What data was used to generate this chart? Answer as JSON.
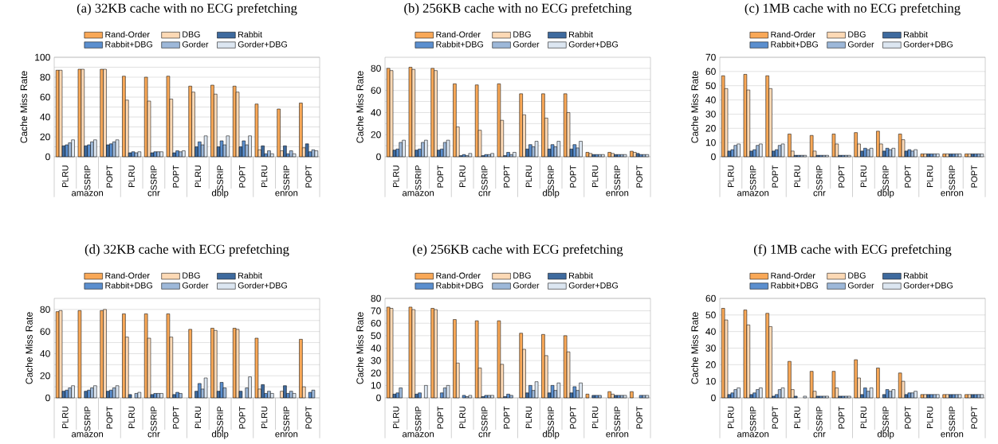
{
  "chart_data": [
    {
      "type": "bar",
      "title": "(a) 32KB cache with no ECG prefetching",
      "ylabel": "Cache Miss Rate",
      "categories": [
        "PLRU",
        "SSRIP",
        "POPT",
        "PLRU",
        "SSRIP",
        "POPT",
        "PLRU",
        "SSRIP",
        "POPT",
        "PLRU",
        "SSRIP",
        "POPT"
      ],
      "annotations": [
        "amazon",
        "cnr",
        "dblp",
        "enron"
      ],
      "ylim": [
        0,
        100
      ],
      "yticks": [
        0,
        {
          "value": 10,
          "label": null
        },
        20,
        {
          "value": 30,
          "label": null
        },
        40,
        {
          "value": 50,
          "label": null
        },
        60,
        {
          "value": 70,
          "label": null
        },
        80,
        {
          "value": 90,
          "label": null
        },
        100
      ],
      "grid": "y",
      "legend": "top",
      "series": [
        {
          "name": "Rand-Order",
          "color": "#f9a857",
          "values": [
            87,
            88,
            88,
            81,
            80,
            81,
            71,
            72,
            71,
            53,
            48,
            54
          ]
        },
        {
          "name": "DBG",
          "color": "#fdd9b5",
          "values": [
            87,
            88,
            88,
            57,
            56,
            58,
            65,
            63,
            65,
            7,
            6,
            9
          ]
        },
        {
          "name": "Rabbit",
          "color": "#3e6a9e",
          "values": [
            11,
            11,
            12,
            4,
            4,
            4,
            10,
            10,
            10,
            11,
            11,
            13
          ]
        },
        {
          "name": "Rabbit+DBG",
          "color": "#5b8fcf",
          "values": [
            12,
            12,
            13,
            5,
            5,
            6,
            15,
            16,
            16,
            3,
            3,
            5
          ]
        },
        {
          "name": "Gorder",
          "color": "#9db8d9",
          "values": [
            14,
            15,
            15,
            4,
            5,
            5,
            12,
            12,
            12,
            6,
            6,
            7
          ]
        },
        {
          "name": "Gorder+DBG",
          "color": "#dce6f1",
          "values": [
            17,
            17,
            17,
            5,
            5,
            6,
            21,
            21,
            21,
            3,
            3,
            6
          ]
        }
      ]
    },
    {
      "type": "bar",
      "title": "(b) 256KB cache with no ECG prefetching",
      "ylabel": "Cache Miss Rate",
      "categories": [
        "PLRU",
        "SSRIP",
        "POPT",
        "PLRU",
        "SSRIP",
        "POPT",
        "PLRU",
        "SSRIP",
        "POPT",
        "PLRU",
        "SSRIP",
        "POPT"
      ],
      "annotations": [
        "amazon",
        "cnr",
        "dblp",
        "enron"
      ],
      "ylim": [
        0,
        90
      ],
      "yticks": [
        0,
        {
          "value": 10,
          "label": null
        },
        20,
        {
          "value": 30,
          "label": null
        },
        40,
        {
          "value": 50,
          "label": null
        },
        60,
        {
          "value": 70,
          "label": null
        },
        80
      ],
      "grid": "y",
      "legend": "top",
      "series": [
        {
          "name": "Rand-Order",
          "color": "#f9a857",
          "values": [
            80,
            81,
            80,
            66,
            65,
            66,
            57,
            57,
            57,
            4,
            4,
            5
          ]
        },
        {
          "name": "DBG",
          "color": "#fdd9b5",
          "values": [
            78,
            79,
            78,
            27,
            24,
            33,
            38,
            35,
            40,
            3,
            3,
            4
          ]
        },
        {
          "name": "Rabbit",
          "color": "#3e6a9e",
          "values": [
            6,
            6,
            6,
            1,
            1,
            1,
            7,
            7,
            7,
            2,
            2,
            3
          ]
        },
        {
          "name": "Rabbit+DBG",
          "color": "#5b8fcf",
          "values": [
            7,
            7,
            7,
            2,
            2,
            4,
            11,
            11,
            11,
            2,
            2,
            2
          ]
        },
        {
          "name": "Gorder",
          "color": "#9db8d9",
          "values": [
            13,
            13,
            13,
            1,
            2,
            2,
            9,
            9,
            8,
            2,
            2,
            2
          ]
        },
        {
          "name": "Gorder+DBG",
          "color": "#dce6f1",
          "values": [
            15,
            15,
            15,
            3,
            3,
            4,
            14,
            14,
            14,
            2,
            2,
            2
          ]
        }
      ]
    },
    {
      "type": "bar",
      "title": "(c) 1MB cache with no ECG prefetching",
      "ylabel": "Cache Miss Rate",
      "categories": [
        "PLRU",
        "SSRIP",
        "POPT",
        "PLRU",
        "SSRIP",
        "POPT",
        "PLRU",
        "SSRIP",
        "POPT",
        "PLRU",
        "SSRIP",
        "POPT"
      ],
      "annotations": [
        "amazon",
        "cnr",
        "dblp",
        "enron"
      ],
      "ylim": [
        0,
        70
      ],
      "yticks": [
        0,
        10,
        20,
        30,
        40,
        50,
        60,
        70
      ],
      "grid": "y",
      "legend": "top",
      "series": [
        {
          "name": "Rand-Order",
          "color": "#f9a857",
          "values": [
            57,
            58,
            57,
            16,
            15,
            16,
            17,
            18,
            16,
            2,
            2,
            2
          ]
        },
        {
          "name": "DBG",
          "color": "#fdd9b5",
          "values": [
            48,
            47,
            48,
            4,
            4,
            9,
            9,
            9,
            12,
            2,
            2,
            2
          ]
        },
        {
          "name": "Rabbit",
          "color": "#3e6a9e",
          "values": [
            4,
            4,
            4,
            1,
            1,
            1,
            4,
            4,
            4,
            2,
            2,
            2
          ]
        },
        {
          "name": "Rabbit+DBG",
          "color": "#5b8fcf",
          "values": [
            5,
            5,
            5,
            1,
            1,
            1,
            6,
            6,
            5,
            2,
            2,
            2
          ]
        },
        {
          "name": "Gorder",
          "color": "#9db8d9",
          "values": [
            8,
            8,
            8,
            1,
            1,
            1,
            5,
            5,
            4,
            2,
            2,
            2
          ]
        },
        {
          "name": "Gorder+DBG",
          "color": "#dce6f1",
          "values": [
            9,
            9,
            9,
            1,
            1,
            1,
            6,
            6,
            5,
            2,
            2,
            2
          ]
        }
      ]
    },
    {
      "type": "bar",
      "title": "(d) 32KB cache with ECG prefetching",
      "ylabel": "Cache Miss Rate",
      "categories": [
        "PLRU",
        "SSRIP",
        "POPT",
        "PLRU",
        "SSRIP",
        "POPT",
        "PLRU",
        "SSRIP",
        "POPT",
        "PLRU",
        "SSRIP",
        "POPT"
      ],
      "annotations": [
        "amazon",
        "cnr",
        "dblp",
        "enron"
      ],
      "ylim": [
        0,
        90
      ],
      "yticks": [
        0,
        {
          "value": 10,
          "label": null
        },
        20,
        {
          "value": 30,
          "label": null
        },
        40,
        {
          "value": 50,
          "label": null
        },
        60,
        {
          "value": 70,
          "label": null
        },
        80
      ],
      "grid": "y",
      "legend": "top",
      "series": [
        {
          "name": "Rand-Order",
          "color": "#f9a857",
          "values": [
            78,
            79,
            79,
            76,
            76,
            76,
            62,
            63,
            63,
            54,
            null,
            53
          ]
        },
        {
          "name": "DBG",
          "color": "#fdd9b5",
          "values": [
            79,
            null,
            80,
            55,
            54,
            55,
            null,
            61,
            62,
            8,
            6,
            10
          ]
        },
        {
          "name": "Rabbit",
          "color": "#3e6a9e",
          "values": [
            6,
            6,
            6,
            3,
            3,
            3,
            6,
            6,
            6,
            12,
            11,
            null
          ]
        },
        {
          "name": "Rabbit+DBG",
          "color": "#5b8fcf",
          "values": [
            7,
            7,
            7,
            null,
            4,
            5,
            13,
            14,
            null,
            4,
            4,
            5
          ]
        },
        {
          "name": "Gorder",
          "color": "#9db8d9",
          "values": [
            9,
            9,
            9,
            4,
            4,
            4,
            8,
            9,
            9,
            6,
            6,
            7
          ]
        },
        {
          "name": "Gorder+DBG",
          "color": "#dce6f1",
          "values": [
            11,
            11,
            11,
            5,
            4,
            null,
            18,
            null,
            19,
            4,
            4,
            null
          ]
        }
      ]
    },
    {
      "type": "bar",
      "title": "(e) 256KB cache with ECG prefetching",
      "ylabel": "Cache Miss Rate",
      "categories": [
        "PLRU",
        "SSRIP",
        "POPT",
        "PLRU",
        "SSRIP",
        "POPT",
        "PLRU",
        "SSRIP",
        "POPT",
        "PLRU",
        "SSRIP",
        "POPT"
      ],
      "annotations": [
        "amazon",
        "cnr",
        "dblp",
        "enron"
      ],
      "ylim": [
        0,
        80
      ],
      "yticks": [
        0,
        10,
        20,
        30,
        40,
        50,
        60,
        70,
        80
      ],
      "grid": "y",
      "legend": "top",
      "series": [
        {
          "name": "Rand-Order",
          "color": "#f9a857",
          "values": [
            73,
            73,
            72,
            63,
            62,
            62,
            52,
            51,
            50,
            3,
            5,
            5
          ]
        },
        {
          "name": "DBG",
          "color": "#fdd9b5",
          "values": [
            72,
            71,
            71,
            28,
            24,
            27,
            39,
            34,
            37,
            null,
            3,
            null
          ]
        },
        {
          "name": "Rabbit",
          "color": "#3e6a9e",
          "values": [
            3,
            3,
            null,
            null,
            1,
            1,
            4,
            4,
            4,
            2,
            2,
            null
          ]
        },
        {
          "name": "Rabbit+DBG",
          "color": "#5b8fcf",
          "values": [
            4,
            4,
            4,
            2,
            2,
            3,
            10,
            10,
            9,
            2,
            2,
            2
          ]
        },
        {
          "name": "Gorder",
          "color": "#9db8d9",
          "values": [
            8,
            null,
            8,
            1,
            2,
            2,
            6,
            6,
            6,
            2,
            2,
            2
          ]
        },
        {
          "name": "Gorder+DBG",
          "color": "#dce6f1",
          "values": [
            null,
            10,
            10,
            2,
            2,
            null,
            13,
            12,
            12,
            null,
            2,
            2
          ]
        }
      ]
    },
    {
      "type": "bar",
      "title": "(f) 1MB cache with ECG prefetching",
      "ylabel": "Cache Miss Rate",
      "categories": [
        "PLRU",
        "SSRIP",
        "POPT",
        "PLRU",
        "SSRIP",
        "POPT",
        "PLRU",
        "SSRIP",
        "POPT",
        "PLRU",
        "SSRIP",
        "POPT"
      ],
      "annotations": [
        "amazon",
        "cnr",
        "dblp",
        "enron"
      ],
      "ylim": [
        0,
        60
      ],
      "yticks": [
        0,
        10,
        20,
        30,
        40,
        50,
        60
      ],
      "grid": "y",
      "legend": "top",
      "series": [
        {
          "name": "Rand-Order",
          "color": "#f9a857",
          "values": [
            54,
            53,
            51,
            22,
            16,
            16,
            23,
            18,
            15,
            2,
            2,
            2
          ]
        },
        {
          "name": "DBG",
          "color": "#fdd9b5",
          "values": [
            47,
            44,
            43,
            5,
            4,
            6,
            12,
            null,
            10,
            2,
            2,
            2
          ]
        },
        {
          "name": "Rabbit",
          "color": "#3e6a9e",
          "values": [
            2,
            2,
            1,
            1,
            1,
            1,
            2,
            2,
            2,
            2,
            2,
            2
          ]
        },
        {
          "name": "Rabbit+DBG",
          "color": "#5b8fcf",
          "values": [
            3,
            3,
            2,
            null,
            1,
            1,
            6,
            5,
            3,
            2,
            2,
            2
          ]
        },
        {
          "name": "Gorder",
          "color": "#9db8d9",
          "values": [
            5,
            5,
            5,
            null,
            1,
            1,
            4,
            4,
            3,
            2,
            2,
            2
          ]
        },
        {
          "name": "Gorder+DBG",
          "color": "#dce6f1",
          "values": [
            6,
            6,
            6,
            1,
            1,
            1,
            6,
            5,
            4,
            2,
            2,
            2
          ]
        }
      ]
    }
  ]
}
